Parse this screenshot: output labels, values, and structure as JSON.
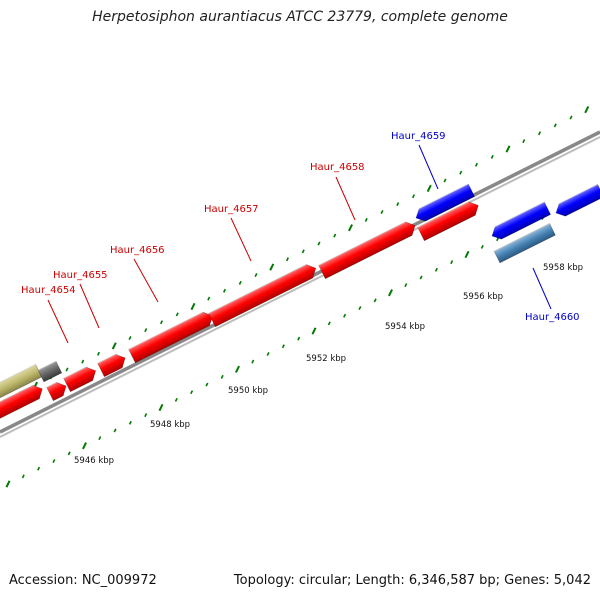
{
  "title": "Herpetosiphon aurantiacus ATCC 23779, complete genome",
  "footer": {
    "accession": "Accession: NC_009972",
    "summary": "Topology: circular; Length: 6,346,587 bp; Genes: 5,042"
  },
  "colors": {
    "forward_gene": "#ff0000",
    "reverse_gene": "#0000ff",
    "rna_gene": "#4682b4",
    "other_forward": "#bdb76b",
    "other_gray": "#666666",
    "backbone": "#888888",
    "tick": "#007a00",
    "label_forward": "#cc0000",
    "label_reverse": "#0000cc"
  },
  "tick_labels": [
    "5946 kbp",
    "5948 kbp",
    "5950 kbp",
    "5952 kbp",
    "5954 kbp",
    "5956 kbp",
    "5958 kbp"
  ],
  "genes": [
    {
      "name": "Haur_4654",
      "strand": "+"
    },
    {
      "name": "Haur_4655",
      "strand": "+"
    },
    {
      "name": "Haur_4656",
      "strand": "+"
    },
    {
      "name": "Haur_4657",
      "strand": "+"
    },
    {
      "name": "Haur_4658",
      "strand": "+"
    },
    {
      "name": "Haur_4659",
      "strand": "-"
    },
    {
      "name": "Haur_4660",
      "strand": "-"
    }
  ]
}
